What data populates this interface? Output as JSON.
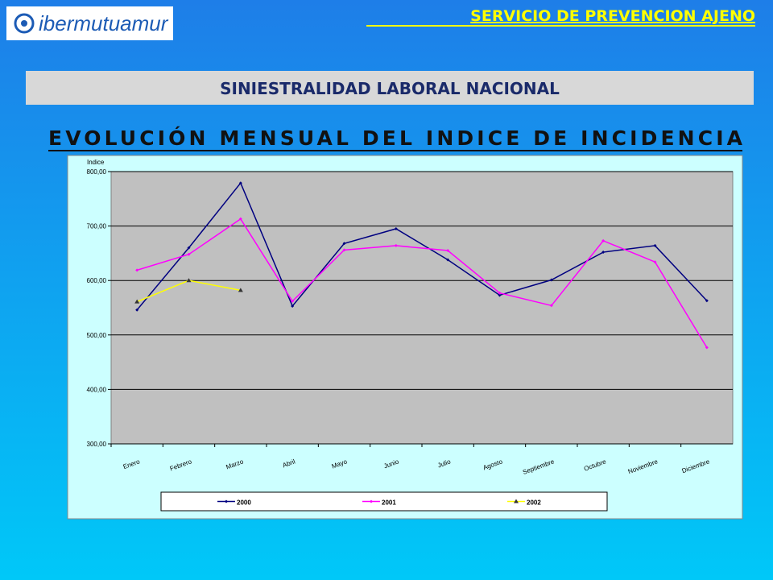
{
  "header": {
    "logo": "ibermutuamur",
    "service": "SERVICIO DE PREVENCION AJENO",
    "section": "SINIESTRALIDAD LABORAL NACIONAL",
    "heading": "EVOLUCIÓN MENSUAL DEL INDICE DE INCIDENCIA"
  },
  "chart_data": {
    "type": "line",
    "y_label": "Indice",
    "categories": [
      "Enero",
      "Febrero",
      "Marzo",
      "Abril",
      "Mayo",
      "Junio",
      "Julio",
      "Agosto",
      "Septiembre",
      "Octubre",
      "Noviembre",
      "Diciembre"
    ],
    "series": [
      {
        "name": "2000",
        "color": "#000080",
        "values": [
          546,
          660,
          779,
          553,
          668,
          695,
          638,
          573,
          601,
          652,
          664,
          563
        ]
      },
      {
        "name": "2001",
        "color": "#ff00ff",
        "values": [
          619,
          648,
          713,
          562,
          656,
          664,
          655,
          577,
          554,
          673,
          634,
          477
        ]
      },
      {
        "name": "2002",
        "color": "#ffff00",
        "values": [
          561,
          600,
          582,
          null,
          null,
          null,
          null,
          null,
          null,
          null,
          null,
          null
        ]
      }
    ],
    "ylim": [
      300,
      800
    ],
    "yticks": [
      {
        "value": 300,
        "label": "300,00"
      },
      {
        "value": 400,
        "label": "400,00"
      },
      {
        "value": 500,
        "label": "500,00"
      },
      {
        "value": 600,
        "label": "600,00"
      },
      {
        "value": 700,
        "label": "700,00"
      },
      {
        "value": 800,
        "label": "800,00"
      }
    ],
    "grid": true,
    "legend": "bottom"
  }
}
